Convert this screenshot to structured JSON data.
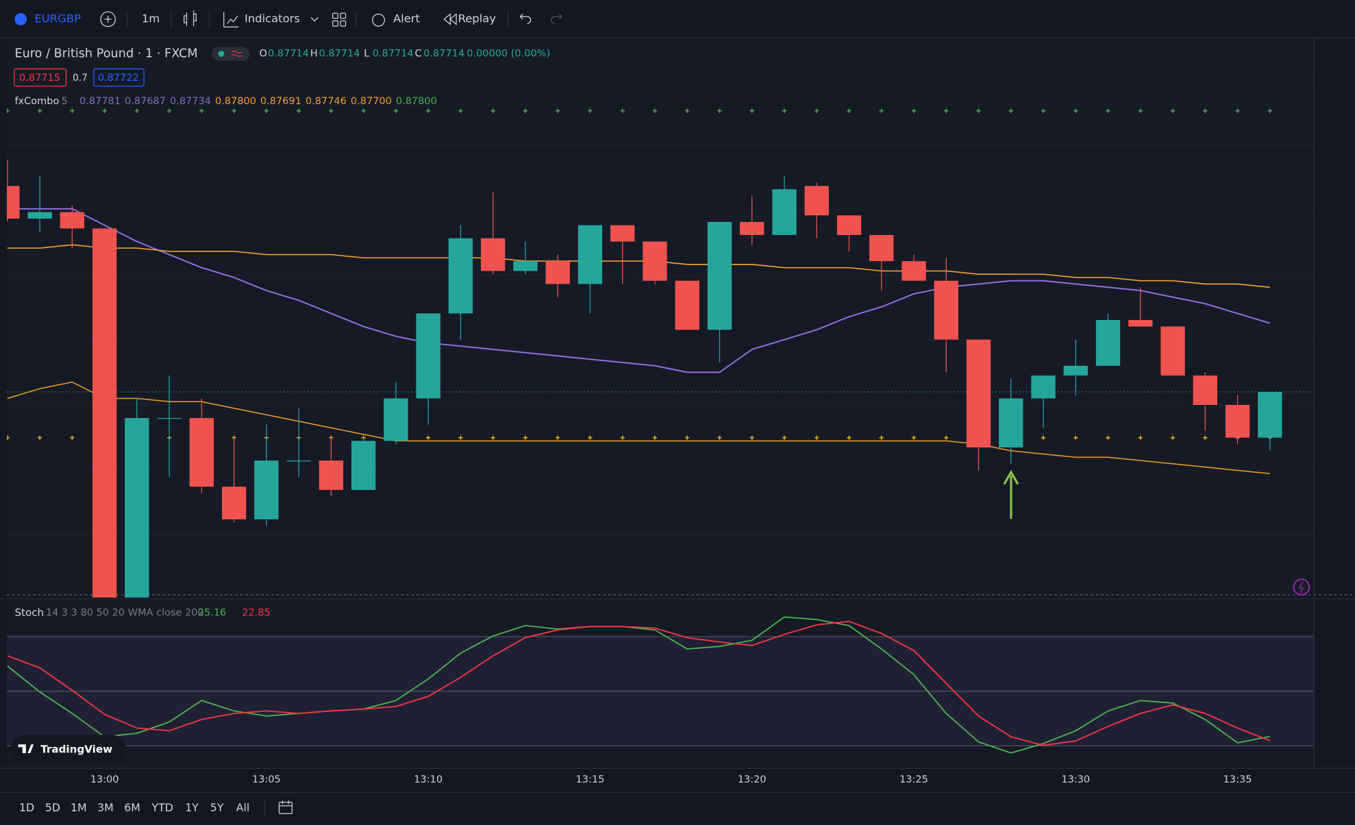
{
  "toolbar": {
    "symbol": "EURGBP",
    "interval": "1m",
    "indicators": "Indicators",
    "alert": "Alert",
    "replay": "Replay"
  },
  "legend": {
    "title": "Euro / British Pound · 1 · FXCM",
    "ohlc": [
      {
        "key": "O",
        "value": "0.87714"
      },
      {
        "key": "H",
        "value": "0.87714"
      },
      {
        "key": "L",
        "value": "0.87714"
      },
      {
        "key": "C",
        "value": "0.87714"
      }
    ],
    "change": "0.00000 (0.00%)",
    "bid": "0.87715",
    "spread": "0.7",
    "ask": "0.87722"
  },
  "indicator": {
    "name": "fxCombo",
    "param": "5",
    "values": [
      "0.87781",
      "0.87687",
      "0.87734",
      "0.87800",
      "0.87691",
      "0.87746",
      "0.87700",
      "0.87800"
    ]
  },
  "stoch_legend": {
    "name": "Stoch",
    "params": "14 3 3 80 50 20 WMA close 200",
    "k": "25.16",
    "d": "22.85"
  },
  "ranges": [
    "1D",
    "5D",
    "1M",
    "3M",
    "6M",
    "YTD",
    "1Y",
    "5Y",
    "All"
  ],
  "watermark": "TradingView",
  "chart_data": [
    {
      "type": "candlestick",
      "up_color": "#26a69a",
      "down_color": "#ef5350",
      "ylim": [
        0.876511,
        0.878222
      ],
      "categories": [
        null,
        null,
        null,
        "13:00",
        null,
        null,
        null,
        null,
        "13:05",
        null,
        null,
        null,
        null,
        "13:10",
        null,
        null,
        null,
        null,
        "13:15",
        null,
        null,
        null,
        null,
        "13:20",
        null,
        null,
        null,
        null,
        "13:25",
        null,
        null,
        null,
        null,
        "13:30",
        null,
        null,
        null,
        null,
        "13:35",
        null
      ],
      "open": [
        0.87777,
        0.87767,
        0.87769,
        0.87764,
        0.87651,
        0.87706,
        0.87706,
        0.87685,
        0.87675,
        0.87693,
        0.87693,
        0.87684,
        0.87699,
        0.87712,
        0.87738,
        0.87761,
        0.87751,
        0.87754,
        0.87747,
        0.87765,
        0.8776,
        0.87748,
        0.87733,
        0.87766,
        0.87762,
        0.87777,
        0.87768,
        0.87762,
        0.87754,
        0.87748,
        0.8773,
        0.87697,
        0.87712,
        0.87719,
        0.87722,
        0.87736,
        0.87734,
        0.87719,
        0.8771,
        0.877
      ],
      "high": [
        0.87785,
        0.8778,
        0.87771,
        0.87764,
        0.87712,
        0.87719,
        0.87712,
        0.877,
        0.87704,
        0.87709,
        0.877,
        0.877,
        0.87717,
        0.87738,
        0.87765,
        0.87775,
        0.8776,
        0.87756,
        0.87765,
        0.87765,
        0.8776,
        0.87748,
        0.87766,
        0.87774,
        0.8778,
        0.87778,
        0.87768,
        0.87762,
        0.87756,
        0.87755,
        0.8773,
        0.87718,
        0.87719,
        0.8773,
        0.87738,
        0.87746,
        0.87734,
        0.8772,
        0.87713,
        0.87714
      ],
      "low": [
        0.87766,
        0.87763,
        0.87758,
        0.87651,
        0.87651,
        0.87688,
        0.87683,
        0.87674,
        0.87673,
        0.87688,
        0.87682,
        0.87684,
        0.87698,
        0.87704,
        0.8773,
        0.8775,
        0.8775,
        0.87743,
        0.87738,
        0.87747,
        0.87747,
        0.87733,
        0.87723,
        0.87759,
        0.87762,
        0.87761,
        0.87757,
        0.87745,
        0.87748,
        0.8772,
        0.8769,
        0.87692,
        0.87703,
        0.87713,
        0.87722,
        0.87734,
        0.87719,
        0.87702,
        0.87698,
        0.87696
      ],
      "close": [
        0.87767,
        0.87769,
        0.87764,
        0.87651,
        0.87706,
        0.87706,
        0.87685,
        0.87675,
        0.87693,
        0.87693,
        0.87684,
        0.87699,
        0.87712,
        0.87738,
        0.87761,
        0.87751,
        0.87754,
        0.87747,
        0.87765,
        0.8776,
        0.87748,
        0.87733,
        0.87766,
        0.87762,
        0.87776,
        0.87768,
        0.87762,
        0.87754,
        0.87748,
        0.8773,
        0.87697,
        0.87712,
        0.87719,
        0.87722,
        0.87736,
        0.87734,
        0.87719,
        0.8771,
        0.877,
        0.87714
      ],
      "overlays": [
        {
          "color": "#8e6ee0",
          "values": [
            0.8777,
            0.8777,
            0.8777,
            0.87765,
            0.8776,
            0.87756,
            0.87752,
            0.87749,
            0.87745,
            0.87742,
            0.87738,
            0.87734,
            0.87731,
            0.87729,
            0.87728,
            0.87727,
            0.87726,
            0.87725,
            0.87724,
            0.87723,
            0.87722,
            0.8772,
            0.8772,
            0.87727,
            0.8773,
            0.87733,
            0.87737,
            0.8774,
            0.87744,
            0.87746,
            0.87747,
            0.87748,
            0.87748,
            0.87747,
            0.87746,
            0.87745,
            0.87743,
            0.87741,
            0.87738,
            0.87735
          ]
        },
        {
          "color": "#f0a030",
          "values": [
            0.87758,
            0.87758,
            0.87759,
            0.87758,
            0.87758,
            0.87757,
            0.87757,
            0.87757,
            0.87756,
            0.87756,
            0.87756,
            0.87755,
            0.87755,
            0.87755,
            0.87755,
            0.87755,
            0.87754,
            0.87754,
            0.87754,
            0.87754,
            0.87754,
            0.87753,
            0.87753,
            0.87753,
            0.87752,
            0.87752,
            0.87752,
            0.87751,
            0.87751,
            0.87751,
            0.8775,
            0.8775,
            0.8775,
            0.87749,
            0.87749,
            0.87748,
            0.87748,
            0.87747,
            0.87747,
            0.87746
          ]
        },
        {
          "color": "#e0962a",
          "values": [
            0.87712,
            0.87715,
            0.87717,
            0.87712,
            0.87712,
            0.87711,
            0.87711,
            0.87709,
            0.87707,
            0.87705,
            0.87703,
            0.87701,
            0.87699,
            0.87699,
            0.87699,
            0.87699,
            0.87699,
            0.87699,
            0.87699,
            0.87699,
            0.87699,
            0.87699,
            0.87699,
            0.87699,
            0.87699,
            0.87699,
            0.87699,
            0.87699,
            0.87699,
            0.87699,
            0.87698,
            0.87696,
            0.87695,
            0.87694,
            0.87694,
            0.87693,
            0.87692,
            0.87691,
            0.8769,
            0.87689
          ]
        }
      ],
      "levels": [
        {
          "value": 0.878,
          "color": "#4caf50"
        },
        {
          "value": 0.877,
          "color": "#f5a623"
        }
      ]
    },
    {
      "type": "line",
      "ylim": [
        8,
        100
      ],
      "levels": [
        80,
        50,
        20
      ],
      "series": [
        {
          "color": "#4caf50",
          "values": [
            63.8,
            49.6,
            37.8,
            25.0,
            26.9,
            33.1,
            44.9,
            39.2,
            36.4,
            37.8,
            39.2,
            40.2,
            44.9,
            56.7,
            70.9,
            80.3,
            86.0,
            84.1,
            85.5,
            85.5,
            83.6,
            73.2,
            74.6,
            77.9,
            90.7,
            89.3,
            86.0,
            73.2,
            59.1,
            37.8,
            22.2,
            16.1,
            21.3,
            28.3,
            39.2,
            44.9,
            43.5,
            34.5,
            21.7,
            25.16
          ]
        },
        {
          "color": "#f23645",
          "values": [
            69.4,
            62.8,
            50.5,
            37.3,
            29.8,
            28.3,
            34.5,
            37.8,
            39.2,
            37.8,
            39.2,
            40.2,
            41.6,
            47.2,
            57.6,
            69.4,
            79.4,
            83.6,
            85.5,
            85.5,
            84.6,
            79.4,
            77.0,
            75.1,
            81.2,
            86.4,
            88.3,
            81.7,
            72.3,
            54.3,
            36.4,
            25.0,
            20.3,
            22.7,
            30.7,
            37.8,
            42.5,
            37.8,
            29.8,
            22.85
          ]
        }
      ]
    }
  ]
}
